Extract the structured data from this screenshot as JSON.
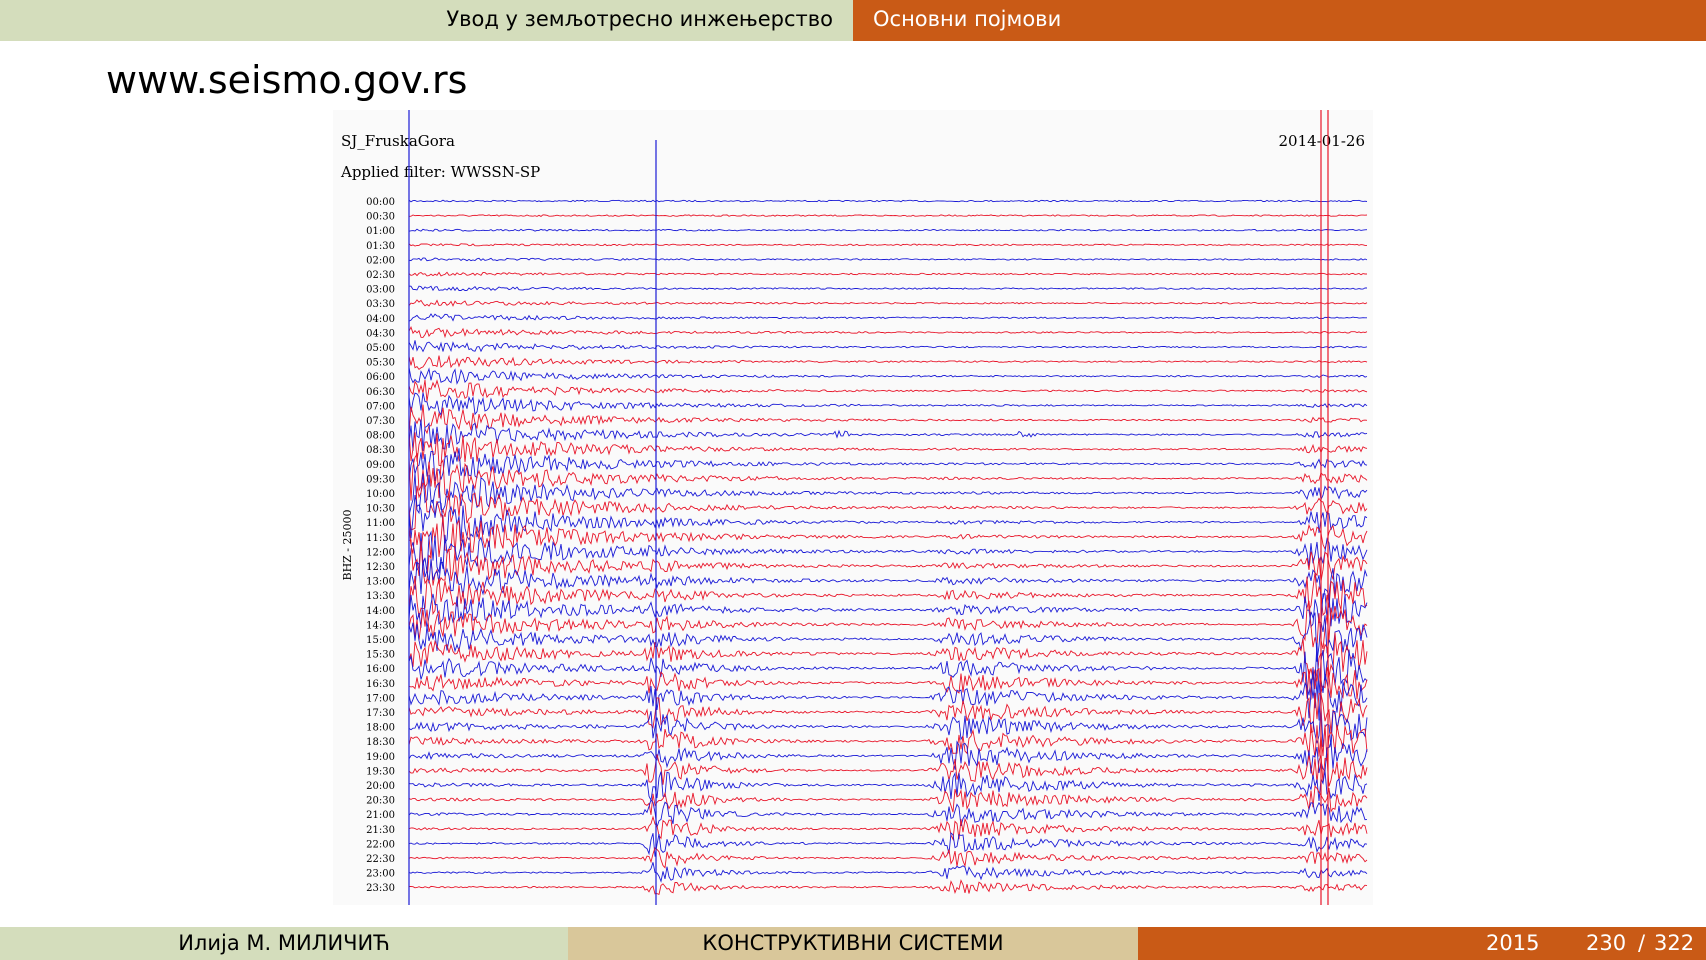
{
  "header": {
    "left": "Увод у земљотресно инжењерство",
    "right": "Основни појмови"
  },
  "frame_title": "www.seismo.gov.rs",
  "seismogram": {
    "station": "SJ_FruskaGora",
    "date": "2014-01-26",
    "filter": "Applied filter: WWSSN-SP",
    "axis_label": "BHZ - 25000",
    "time_labels": [
      "00:00",
      "00:30",
      "01:00",
      "01:30",
      "02:00",
      "02:30",
      "03:00",
      "03:30",
      "04:00",
      "04:30",
      "05:00",
      "05:30",
      "06:00",
      "06:30",
      "07:00",
      "07:30",
      "08:00",
      "08:30",
      "09:00",
      "09:30",
      "10:00",
      "10:30",
      "11:00",
      "11:30",
      "12:00",
      "12:30",
      "13:00",
      "13:30",
      "14:00",
      "14:30",
      "15:00",
      "15:30",
      "16:00",
      "16:30",
      "17:00",
      "17:30",
      "18:00",
      "18:30",
      "19:00",
      "19:30",
      "20:00",
      "20:30",
      "21:00",
      "21:30",
      "22:00",
      "22:30",
      "23:00",
      "23:30"
    ],
    "colors": {
      "even": "#1a1ad6",
      "odd": "#e8162a"
    }
  },
  "footer": {
    "author": "Илија М. МИЛИЧИЋ",
    "course": "КОНСТРУКТИВНИ СИСТЕМИ",
    "year": "2015",
    "page": "230",
    "separator": "/",
    "total": "322"
  }
}
